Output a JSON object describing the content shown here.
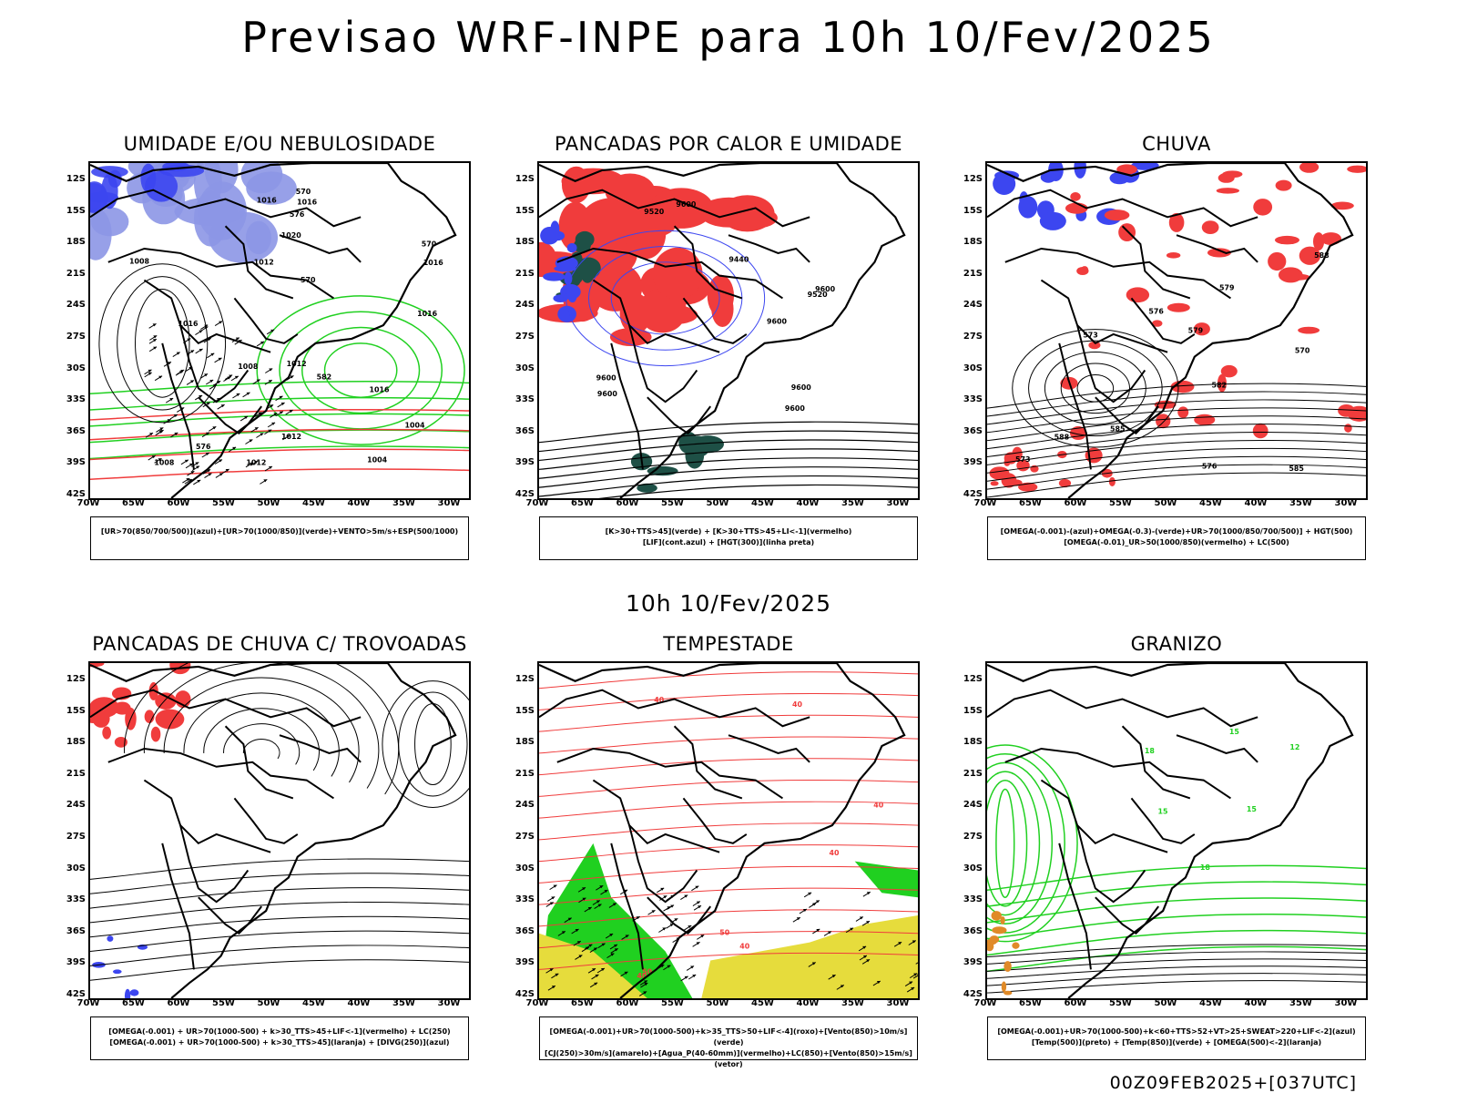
{
  "main_title": "Previsao WRF-INPE  para 10h 10/Fev/2025",
  "mid_title": "10h 10/Fev/2025",
  "footer": "00Z09FEB2025+[037UTC]",
  "colors": {
    "blue": "#3c46f0",
    "lightblue": "#8c96e6",
    "green": "#20d020",
    "red": "#f03c3c",
    "darkgreen": "#1e5046",
    "yellow": "#e6dc3c",
    "orange": "#e08a28",
    "black": "#000000"
  },
  "chart_data": [
    {
      "type": "other",
      "title": "UMIDADE E/OU NEBULOSIDADE",
      "x_ticks": [
        "70W",
        "65W",
        "60W",
        "55W",
        "50W",
        "45W",
        "40W",
        "35W",
        "30W"
      ],
      "y_ticks": [
        "12S",
        "15S",
        "18S",
        "21S",
        "24S",
        "27S",
        "30S",
        "33S",
        "36S",
        "39S",
        "42S"
      ],
      "legend": [
        "[UR>70(850/700/500)](azul)+[UR>70(1000/850)](verde)+VENTO>5m/s+ESP(500/1000)"
      ],
      "contour_labels": [
        "1012",
        "1016",
        "1020",
        "1012",
        "1016",
        "1016",
        "1012",
        "1016",
        "1008",
        "1008",
        "1004",
        "1008",
        "1004",
        "1016",
        "1012",
        "1016",
        "570",
        "570",
        "576",
        "576",
        "582",
        "570"
      ]
    },
    {
      "type": "other",
      "title": "PANCADAS POR CALOR E UMIDADE",
      "x_ticks": [
        "70W",
        "65W",
        "60W",
        "55W",
        "50W",
        "45W",
        "40W",
        "35W",
        "30W"
      ],
      "y_ticks": [
        "12S",
        "15S",
        "18S",
        "21S",
        "24S",
        "27S",
        "30S",
        "33S",
        "36S",
        "39S",
        "42S"
      ],
      "legend": [
        "[K>30+TTS>45](verde) + [K>30+TTS>45+LI<-1](vermelho)",
        "[LIF](cont.azul) + [HGT(300)](linha preta)"
      ],
      "contour_labels": [
        "9600",
        "9600",
        "9600",
        "9600",
        "9600",
        "9600",
        "9520",
        "9600",
        "9520",
        "9440"
      ]
    },
    {
      "type": "other",
      "title": "CHUVA",
      "x_ticks": [
        "70W",
        "65W",
        "60W",
        "55W",
        "50W",
        "45W",
        "40W",
        "35W",
        "30W"
      ],
      "y_ticks": [
        "12S",
        "15S",
        "18S",
        "21S",
        "24S",
        "27S",
        "30S",
        "33S",
        "36S",
        "39S",
        "42S"
      ],
      "legend": [
        "[OMEGA(-0.001)-(azul)+OMEGA(-0.3)-(verde)+UR>70(1000/850/700/500)] + HGT(500)",
        "[OMEGA(-0.01)_UR>50(1000/850)(vermelho) + LC(500)"
      ],
      "contour_labels": [
        "588",
        "588",
        "585",
        "585",
        "582",
        "579",
        "576",
        "573",
        "570",
        "579",
        "576",
        "573"
      ]
    },
    {
      "type": "other",
      "title": "PANCADAS DE CHUVA C/ TROVOADAS",
      "x_ticks": [
        "70W",
        "65W",
        "60W",
        "55W",
        "50W",
        "45W",
        "40W",
        "35W",
        "30W"
      ],
      "y_ticks": [
        "12S",
        "15S",
        "18S",
        "21S",
        "24S",
        "27S",
        "30S",
        "33S",
        "36S",
        "39S",
        "42S"
      ],
      "legend": [
        "[OMEGA(-0.001) + UR>70(1000-500) + k>30_TTS>45+LIF<-1](vermelho) + LC(250)",
        "[OMEGA(-0.001) + UR>70(1000-500) + k>30_TTS>45](laranja) + [DIVG(250)](azul)"
      ],
      "contour_labels": []
    },
    {
      "type": "other",
      "title": "TEMPESTADE",
      "x_ticks": [
        "70W",
        "65W",
        "60W",
        "55W",
        "50W",
        "45W",
        "40W",
        "35W",
        "30W"
      ],
      "y_ticks": [
        "12S",
        "15S",
        "18S",
        "21S",
        "24S",
        "27S",
        "30S",
        "33S",
        "36S",
        "39S",
        "42S"
      ],
      "legend": [
        "[OMEGA(-0.001)+UR>70(1000-500)+k>35_TTS>50+LIF<-4](roxo)+[Vento(850)>10m/s](verde)",
        "[CJ(250)>30m/s](amarelo)+[Agua_P(40-60mm)](vermelho)+LC(850)+[Vento(850)>15m/s](vetor)"
      ],
      "contour_labels": [
        "40",
        "40",
        "50",
        "40",
        "40",
        "50",
        "40",
        "40"
      ]
    },
    {
      "type": "other",
      "title": "GRANIZO",
      "x_ticks": [
        "70W",
        "65W",
        "60W",
        "55W",
        "50W",
        "45W",
        "40W",
        "35W",
        "30W"
      ],
      "y_ticks": [
        "12S",
        "15S",
        "18S",
        "21S",
        "24S",
        "27S",
        "30S",
        "33S",
        "36S",
        "39S",
        "42S"
      ],
      "legend": [
        "[OMEGA(-0.001)+UR>70(1000-500)+k<60+TTS>52+VT>25+SWEAT>220+LIF<-2](azul)",
        "[Temp(500)](preto) + [Temp(850)](verde) + [OMEGA(500)<-2](laranja)"
      ],
      "contour_labels": [
        "15",
        "15",
        "18",
        "15",
        "18",
        "12"
      ]
    }
  ]
}
